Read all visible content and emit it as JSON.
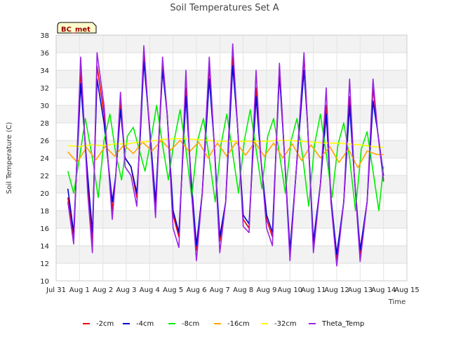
{
  "chart_data": {
    "type": "line",
    "title": "Soil Temperatures Set A",
    "xlabel": "Time",
    "ylabel": "Soil Temperature (C)",
    "badge": "BC_met",
    "ylim": [
      10,
      38
    ],
    "xlim": [
      0,
      15
    ],
    "yticks": [
      10,
      12,
      14,
      16,
      18,
      20,
      22,
      24,
      26,
      28,
      30,
      32,
      34,
      36,
      38
    ],
    "xticks": [
      {
        "x": 0,
        "label": "Jul 31"
      },
      {
        "x": 1,
        "label": "Aug 1"
      },
      {
        "x": 2,
        "label": "Aug 2"
      },
      {
        "x": 3,
        "label": "Aug 3"
      },
      {
        "x": 4,
        "label": "Aug 4"
      },
      {
        "x": 5,
        "label": "Aug 5"
      },
      {
        "x": 6,
        "label": "Aug 6"
      },
      {
        "x": 7,
        "label": "Aug 7"
      },
      {
        "x": 8,
        "label": "Aug 8"
      },
      {
        "x": 9,
        "label": "Aug 9"
      },
      {
        "x": 10,
        "label": "Aug 10"
      },
      {
        "x": 11,
        "label": "Aug 11"
      },
      {
        "x": 12,
        "label": "Aug 12"
      },
      {
        "x": 13,
        "label": "Aug 13"
      },
      {
        "x": 14,
        "label": "Aug 14"
      },
      {
        "x": 15,
        "label": "Aug 15"
      }
    ],
    "grid": true,
    "legend_position": "bottom",
    "series": [
      {
        "name": "-2cm",
        "color": "#ee0000",
        "x": [
          0.5,
          0.75,
          1.05,
          1.35,
          1.55,
          1.75,
          2.05,
          2.4,
          2.55,
          2.75,
          2.95,
          3.2,
          3.45,
          3.6,
          3.75,
          4.0,
          4.25,
          4.55,
          4.75,
          5.0,
          5.25,
          5.55,
          5.75,
          6.0,
          6.25,
          6.55,
          6.75,
          7.0,
          7.25,
          7.55,
          7.75,
          8.0,
          8.25,
          8.55,
          8.75,
          9.0,
          9.25,
          9.55,
          9.75,
          10.0,
          10.25,
          10.6,
          10.75,
          11.0,
          11.3,
          11.55,
          11.75,
          12.0,
          12.3,
          12.55,
          12.75,
          13.0,
          13.3,
          13.55,
          13.75,
          14.0
        ],
        "y": [
          19.5,
          15.0,
          34.0,
          21.0,
          14.5,
          34.5,
          29.0,
          18.0,
          22.0,
          30.5,
          24.0,
          23.0,
          19.5,
          27.0,
          36.0,
          27.0,
          18.5,
          35.0,
          29.0,
          17.5,
          15.0,
          32.0,
          22.0,
          13.5,
          20.0,
          34.5,
          26.0,
          14.5,
          19.0,
          35.5,
          28.0,
          17.0,
          16.0,
          32.0,
          24.0,
          17.0,
          15.0,
          34.5,
          25.0,
          13.0,
          22.0,
          35.5,
          28.0,
          14.0,
          21.0,
          30.0,
          19.0,
          12.5,
          19.0,
          31.0,
          22.0,
          13.0,
          19.0,
          32.0,
          27.0,
          21.5
        ]
      },
      {
        "name": "-4cm",
        "color": "#0000cc",
        "x": [
          0.5,
          0.75,
          1.05,
          1.35,
          1.55,
          1.75,
          2.05,
          2.4,
          2.55,
          2.75,
          2.95,
          3.2,
          3.45,
          3.6,
          3.75,
          4.0,
          4.25,
          4.55,
          4.75,
          5.0,
          5.25,
          5.55,
          5.75,
          6.0,
          6.25,
          6.55,
          6.75,
          7.0,
          7.25,
          7.55,
          7.75,
          8.0,
          8.25,
          8.55,
          8.75,
          9.0,
          9.25,
          9.55,
          9.75,
          10.0,
          10.25,
          10.6,
          10.75,
          11.0,
          11.3,
          11.55,
          11.75,
          12.0,
          12.3,
          12.55,
          12.75,
          13.0,
          13.3,
          13.55,
          13.75,
          14.0
        ],
        "y": [
          20.5,
          15.5,
          32.5,
          22.0,
          15.5,
          33.0,
          28.0,
          19.0,
          22.0,
          29.5,
          24.0,
          23.0,
          20.0,
          26.5,
          35.0,
          27.5,
          19.0,
          34.0,
          29.0,
          18.0,
          15.5,
          31.0,
          22.5,
          14.0,
          20.0,
          33.0,
          26.0,
          15.0,
          19.0,
          34.5,
          28.0,
          17.5,
          16.5,
          31.0,
          24.0,
          17.5,
          15.5,
          33.5,
          25.0,
          13.5,
          22.0,
          34.0,
          28.0,
          14.5,
          21.0,
          29.0,
          19.5,
          13.0,
          19.0,
          30.0,
          22.0,
          13.5,
          19.0,
          30.5,
          27.0,
          22.0
        ]
      },
      {
        "name": "-8cm",
        "color": "#00ee00",
        "x": [
          0.5,
          0.75,
          1.0,
          1.25,
          1.55,
          1.8,
          2.05,
          2.3,
          2.55,
          2.8,
          3.05,
          3.3,
          3.55,
          3.8,
          4.05,
          4.3,
          4.55,
          4.8,
          5.05,
          5.3,
          5.55,
          5.8,
          6.05,
          6.3,
          6.55,
          6.8,
          7.05,
          7.3,
          7.55,
          7.8,
          8.05,
          8.3,
          8.55,
          8.8,
          9.05,
          9.3,
          9.55,
          9.8,
          10.05,
          10.3,
          10.55,
          10.8,
          11.05,
          11.3,
          11.55,
          11.8,
          12.05,
          12.3,
          12.55,
          12.8,
          13.05,
          13.3,
          13.55,
          13.8,
          14.0
        ],
        "y": [
          22.5,
          20.0,
          24.0,
          28.5,
          24.0,
          19.5,
          26.0,
          29.0,
          24.5,
          21.5,
          26.5,
          27.5,
          25.0,
          22.5,
          26.0,
          30.0,
          25.5,
          21.5,
          26.0,
          29.5,
          25.0,
          19.5,
          26.0,
          28.5,
          24.0,
          19.0,
          25.5,
          29.0,
          24.5,
          20.0,
          26.0,
          29.5,
          25.0,
          20.5,
          26.5,
          28.5,
          24.5,
          20.0,
          26.0,
          28.5,
          24.0,
          18.5,
          25.5,
          29.0,
          24.5,
          19.5,
          25.5,
          28.0,
          24.0,
          18.0,
          25.0,
          27.0,
          22.5,
          18.0,
          23.0
        ]
      },
      {
        "name": "-16cm",
        "color": "#ffa500",
        "x": [
          0.5,
          0.9,
          1.3,
          1.7,
          2.1,
          2.5,
          2.9,
          3.3,
          3.7,
          4.1,
          4.5,
          4.9,
          5.3,
          5.7,
          6.1,
          6.5,
          6.9,
          7.3,
          7.7,
          8.1,
          8.5,
          8.9,
          9.3,
          9.7,
          10.1,
          10.5,
          10.9,
          11.3,
          11.7,
          12.1,
          12.5,
          12.9,
          13.3,
          13.7,
          14.0
        ],
        "y": [
          24.7,
          23.5,
          25.2,
          23.8,
          25.3,
          24.2,
          25.5,
          24.5,
          25.8,
          24.8,
          26.0,
          24.9,
          26.0,
          24.7,
          25.8,
          24.0,
          25.7,
          24.2,
          25.8,
          24.3,
          25.8,
          24.2,
          25.7,
          24.0,
          25.6,
          23.7,
          25.5,
          24.0,
          25.3,
          23.5,
          25.0,
          22.9,
          24.8,
          24.4,
          24.4
        ]
      },
      {
        "name": "-32cm",
        "color": "#ffff00",
        "x": [
          0.5,
          1.0,
          1.5,
          2.0,
          2.5,
          3.0,
          3.5,
          4.0,
          4.5,
          5.0,
          5.5,
          6.0,
          6.5,
          7.0,
          7.5,
          8.0,
          8.5,
          9.0,
          9.5,
          10.0,
          10.5,
          11.0,
          11.5,
          12.0,
          12.5,
          13.0,
          13.5,
          14.0
        ],
        "y": [
          25.4,
          25.3,
          25.5,
          25.4,
          25.6,
          25.6,
          25.8,
          25.9,
          26.1,
          26.2,
          26.2,
          26.1,
          26.0,
          25.9,
          25.9,
          25.9,
          25.9,
          25.9,
          26.0,
          26.0,
          25.9,
          25.8,
          25.7,
          25.7,
          25.6,
          25.5,
          25.3,
          25.2
        ]
      },
      {
        "name": "Theta_Temp",
        "color": "#9a24e6",
        "x": [
          0.5,
          0.75,
          1.05,
          1.35,
          1.55,
          1.75,
          2.05,
          2.4,
          2.55,
          2.75,
          2.95,
          3.2,
          3.45,
          3.6,
          3.75,
          4.0,
          4.25,
          4.55,
          4.75,
          5.0,
          5.25,
          5.55,
          5.75,
          6.0,
          6.25,
          6.55,
          6.75,
          7.0,
          7.25,
          7.55,
          7.75,
          8.0,
          8.25,
          8.55,
          8.75,
          9.0,
          9.25,
          9.55,
          9.75,
          10.0,
          10.25,
          10.6,
          10.75,
          11.0,
          11.3,
          11.55,
          11.75,
          12.0,
          12.3,
          12.55,
          12.75,
          13.0,
          13.3,
          13.55,
          13.75,
          14.0
        ],
        "y": [
          19.0,
          14.2,
          35.5,
          20.0,
          13.2,
          36.0,
          30.0,
          17.0,
          22.0,
          31.5,
          23.0,
          22.0,
          18.5,
          27.5,
          36.8,
          27.0,
          17.2,
          35.5,
          29.0,
          16.0,
          13.8,
          34.0,
          21.5,
          12.3,
          20.0,
          35.5,
          26.0,
          13.2,
          19.0,
          37.0,
          28.0,
          16.2,
          15.5,
          34.0,
          24.0,
          16.0,
          14.0,
          34.8,
          25.0,
          12.3,
          22.0,
          36.0,
          28.0,
          13.2,
          21.0,
          32.0,
          19.0,
          11.7,
          19.0,
          33.0,
          22.0,
          12.2,
          19.0,
          33.0,
          27.0,
          21.3
        ]
      }
    ]
  }
}
